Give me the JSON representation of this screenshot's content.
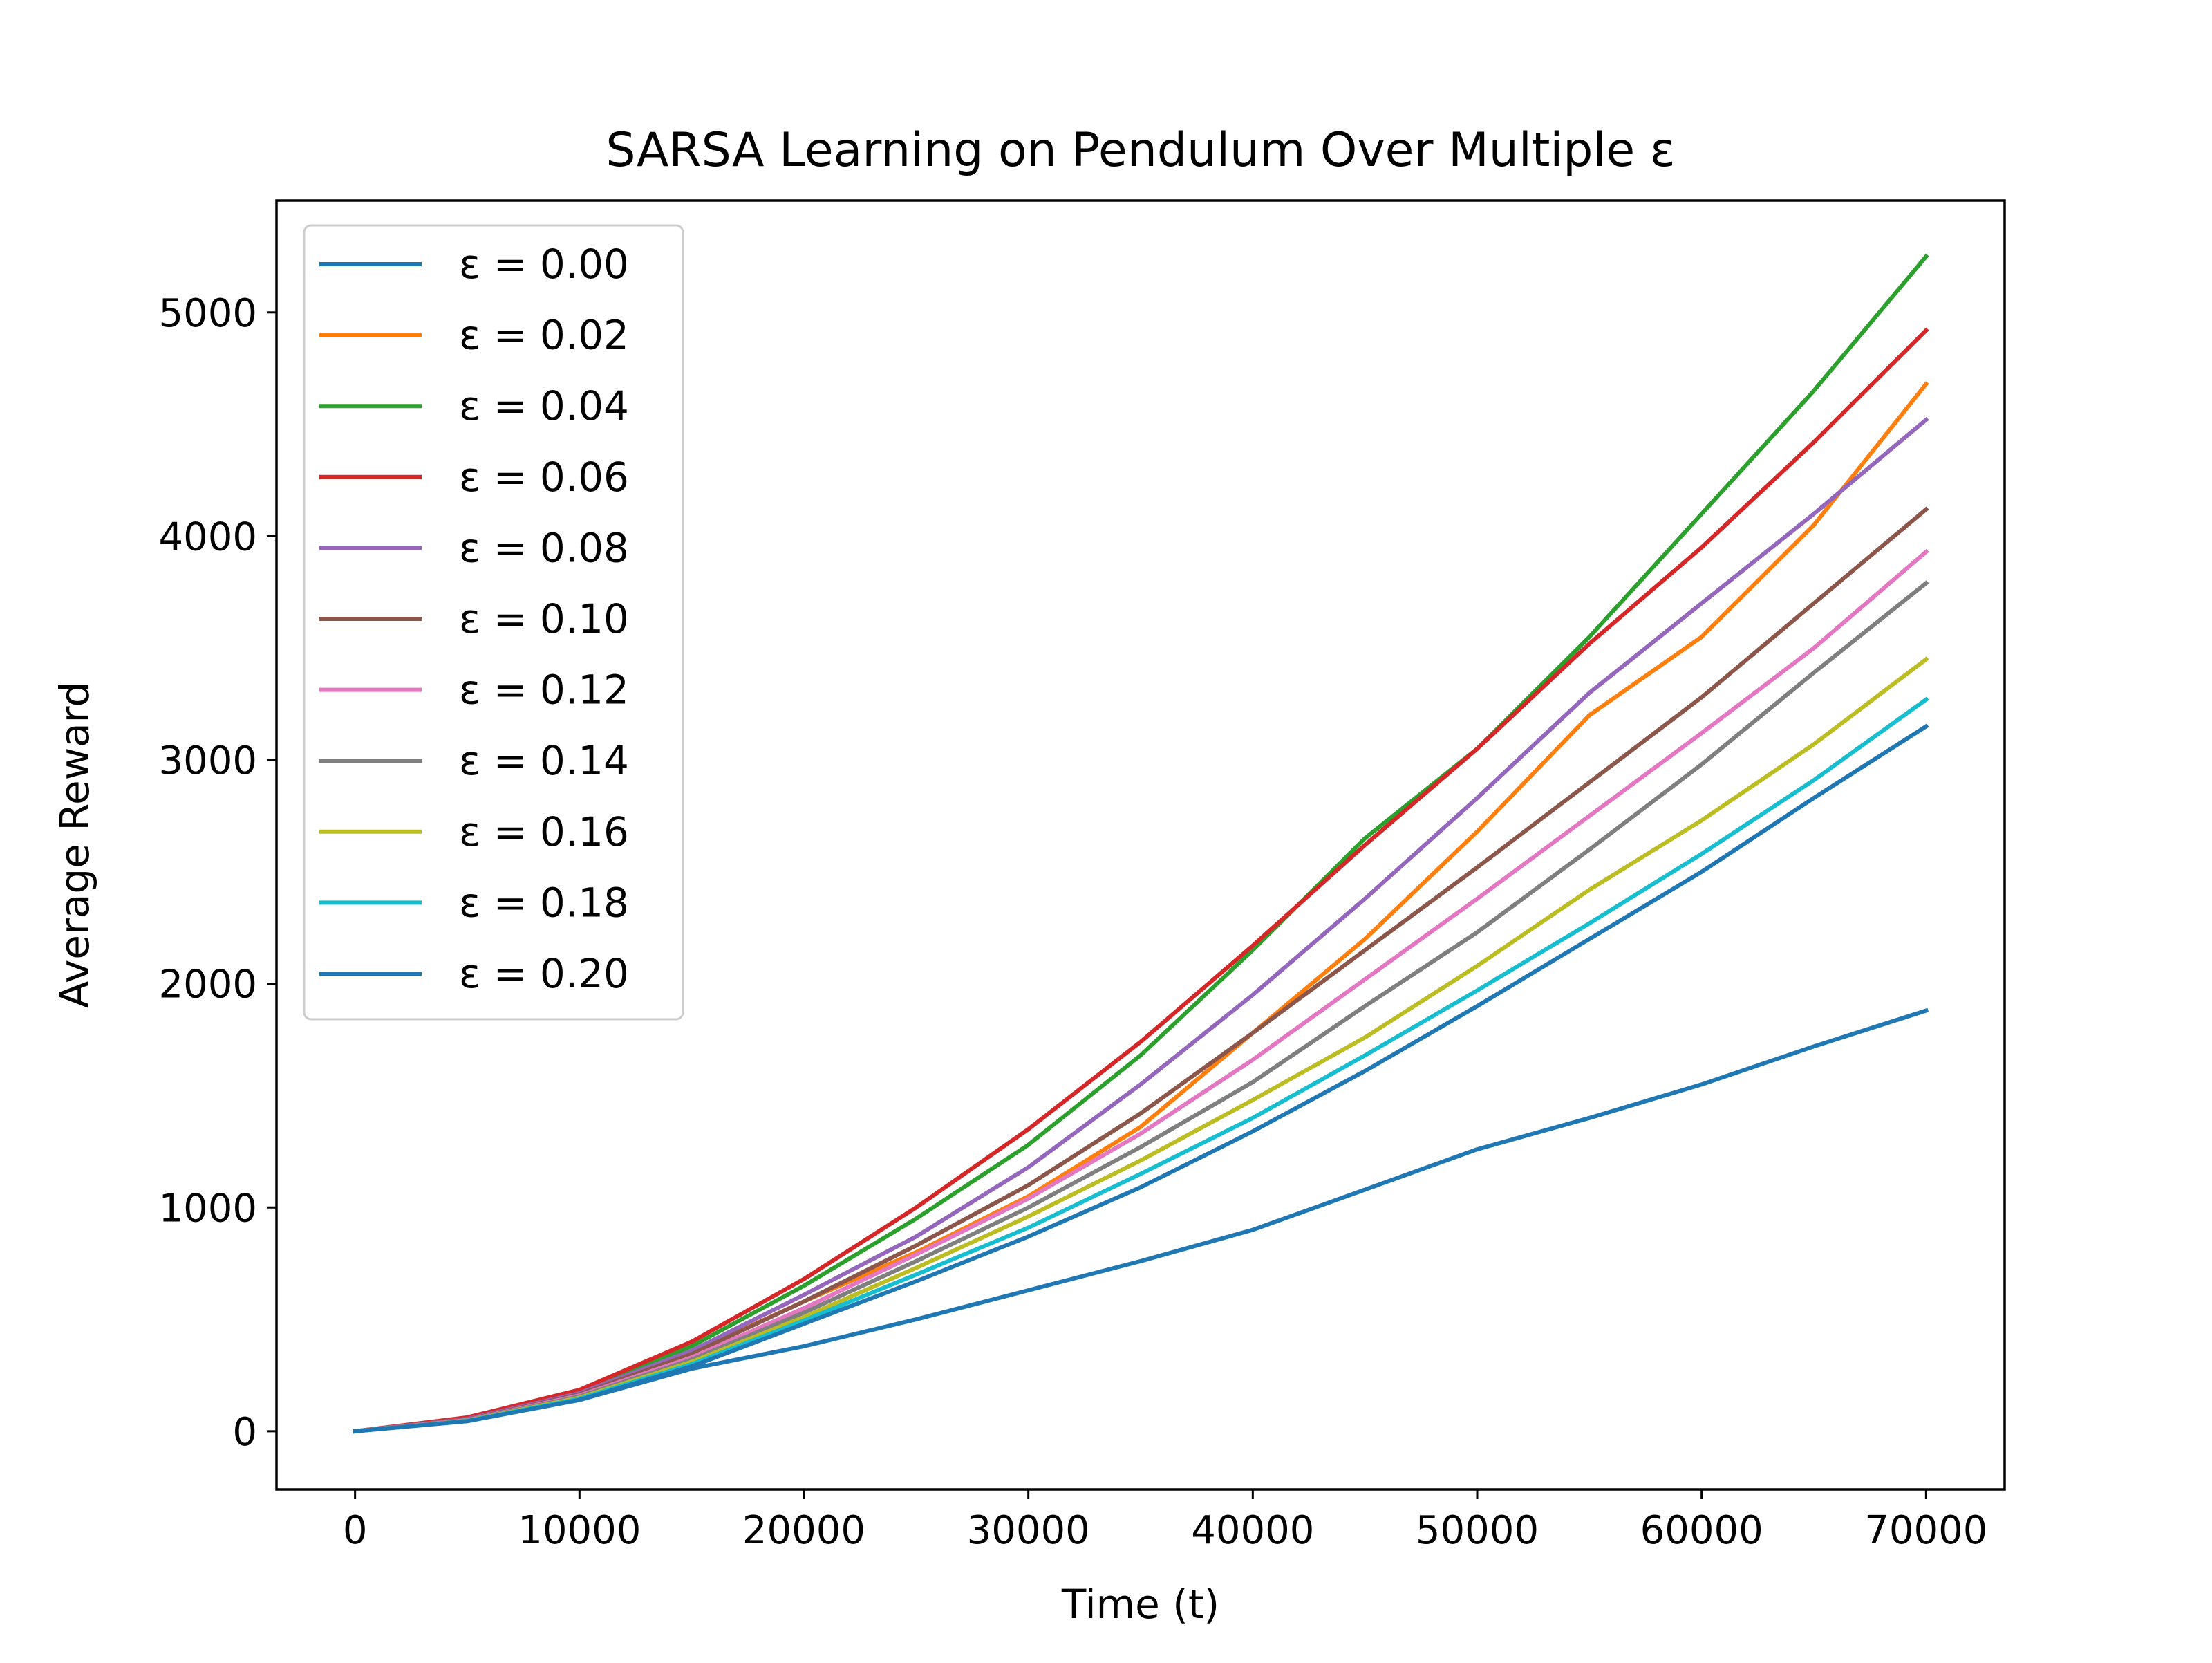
{
  "chart_data": {
    "type": "line",
    "title": "SARSA Learning on Pendulum Over Multiple ε",
    "xlabel": "Time (t)",
    "ylabel": "Average Reward",
    "xlim": [
      -3500,
      73500
    ],
    "ylim": [
      -260,
      5500
    ],
    "xticks": [
      0,
      10000,
      20000,
      30000,
      40000,
      50000,
      60000,
      70000
    ],
    "yticks": [
      0,
      1000,
      2000,
      3000,
      4000,
      5000
    ],
    "grid": false,
    "legend_position": "top-left",
    "x": [
      0,
      5000,
      10000,
      15000,
      20000,
      25000,
      30000,
      35000,
      40000,
      45000,
      50000,
      55000,
      60000,
      65000,
      70000
    ],
    "series": [
      {
        "name": "ε = 0.00",
        "color": "#1f77b4",
        "values": [
          0,
          50,
          140,
          280,
          380,
          500,
          630,
          760,
          900,
          1080,
          1260,
          1400,
          1550,
          1720,
          1880
        ]
      },
      {
        "name": "ε = 0.02",
        "color": "#ff7f0e",
        "values": [
          0,
          55,
          160,
          350,
          580,
          800,
          1050,
          1360,
          1780,
          2200,
          2680,
          3200,
          3550,
          4050,
          4680
        ]
      },
      {
        "name": "ε = 0.04",
        "color": "#2ca02c",
        "values": [
          0,
          58,
          175,
          380,
          650,
          950,
          1280,
          1680,
          2150,
          2650,
          3050,
          3550,
          4100,
          4650,
          5250
        ]
      },
      {
        "name": "ε = 0.06",
        "color": "#d62728",
        "values": [
          0,
          62,
          185,
          400,
          680,
          1000,
          1350,
          1740,
          2170,
          2620,
          3050,
          3520,
          3950,
          4420,
          4920
        ]
      },
      {
        "name": "ε = 0.08",
        "color": "#9467bd",
        "values": [
          0,
          55,
          170,
          360,
          610,
          870,
          1180,
          1550,
          1950,
          2380,
          2830,
          3300,
          3700,
          4100,
          4520
        ]
      },
      {
        "name": "ε = 0.10",
        "color": "#8c564b",
        "values": [
          0,
          52,
          165,
          345,
          580,
          830,
          1100,
          1420,
          1780,
          2150,
          2520,
          2900,
          3280,
          3700,
          4120
        ]
      },
      {
        "name": "ε = 0.12",
        "color": "#e377c2",
        "values": [
          0,
          50,
          160,
          330,
          550,
          790,
          1040,
          1330,
          1660,
          2020,
          2380,
          2750,
          3120,
          3500,
          3930
        ]
      },
      {
        "name": "ε = 0.14",
        "color": "#7f7f7f",
        "values": [
          0,
          48,
          155,
          320,
          530,
          760,
          1000,
          1270,
          1560,
          1900,
          2230,
          2600,
          2980,
          3390,
          3790
        ]
      },
      {
        "name": "ε = 0.16",
        "color": "#bcbd22",
        "values": [
          0,
          47,
          150,
          310,
          510,
          730,
          960,
          1210,
          1480,
          1760,
          2080,
          2420,
          2730,
          3070,
          3450
        ]
      },
      {
        "name": "ε = 0.18",
        "color": "#17becf",
        "values": [
          0,
          46,
          145,
          300,
          495,
          700,
          910,
          1150,
          1400,
          1680,
          1970,
          2270,
          2580,
          2910,
          3270
        ]
      },
      {
        "name": "ε = 0.20",
        "color": "#1f77b4",
        "values": [
          0,
          45,
          140,
          290,
          480,
          670,
          870,
          1090,
          1340,
          1610,
          1900,
          2200,
          2500,
          2830,
          3150
        ]
      }
    ]
  }
}
